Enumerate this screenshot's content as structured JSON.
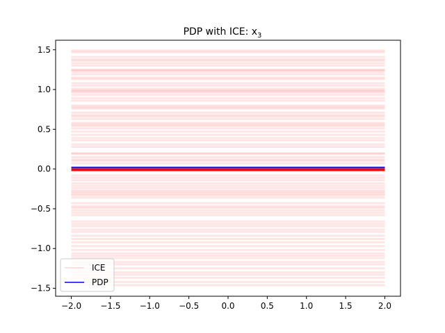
{
  "chart_data": {
    "type": "line",
    "title": "PDP with ICE: x",
    "title_subscript": "3",
    "xlabel": "",
    "ylabel": "",
    "xlim": [
      -2.2,
      2.2
    ],
    "ylim": [
      -1.6,
      1.62
    ],
    "x_ticks": [
      -2.0,
      -1.5,
      -1.0,
      -0.5,
      0.0,
      0.5,
      1.0,
      1.5,
      2.0
    ],
    "x_tick_labels": [
      "−2.0",
      "−1.5",
      "−1.0",
      "−0.5",
      "0.0",
      "0.5",
      "1.0",
      "1.5",
      "2.0"
    ],
    "y_ticks": [
      -1.5,
      -1.0,
      -0.5,
      0.0,
      0.5,
      1.0,
      1.5
    ],
    "y_tick_labels": [
      "−1.5",
      "−1.0",
      "−0.5",
      "0.0",
      "0.5",
      "1.0",
      "1.5"
    ],
    "grid": false,
    "legend_position": "lower-left",
    "legend": [
      "ICE",
      "PDP"
    ],
    "x_range": [
      -2.0,
      2.0
    ],
    "series": [
      {
        "name": "ICE",
        "color": "#ff0000",
        "opacity": 0.1,
        "constant_values": [
          1.49,
          1.47,
          1.41,
          1.38,
          1.36,
          1.33,
          1.3,
          1.25,
          1.24,
          1.22,
          1.19,
          1.15,
          1.13,
          1.08,
          1.05,
          1.01,
          0.99,
          0.98,
          0.96,
          0.93,
          0.89,
          0.86,
          0.8,
          0.78,
          0.76,
          0.71,
          0.68,
          0.66,
          0.63,
          0.58,
          0.56,
          0.54,
          0.51,
          0.47,
          0.43,
          0.39,
          0.36,
          0.31,
          0.28,
          0.2,
          0.19,
          0.15,
          0.12,
          0.1,
          0.07,
          -0.08,
          -0.11,
          -0.14,
          -0.18,
          -0.21,
          -0.24,
          -0.27,
          -0.29,
          -0.31,
          -0.33,
          -0.36,
          -0.43,
          -0.47,
          -0.49,
          -0.52,
          -0.55,
          -0.58,
          -0.66,
          -0.69,
          -0.72,
          -0.76,
          -0.79,
          -0.84,
          -0.88,
          -0.92,
          -0.97,
          -1.02,
          -1.06,
          -1.09,
          -1.12,
          -1.17,
          -1.2,
          -1.25,
          -1.3,
          -1.33,
          -1.37,
          -1.42,
          -1.46
        ]
      },
      {
        "name": "PDP",
        "color": "#0000ff",
        "constant_values": [
          0.02
        ]
      },
      {
        "name": "",
        "color": "#ff0000",
        "constant_values": [
          0.0
        ]
      }
    ]
  }
}
